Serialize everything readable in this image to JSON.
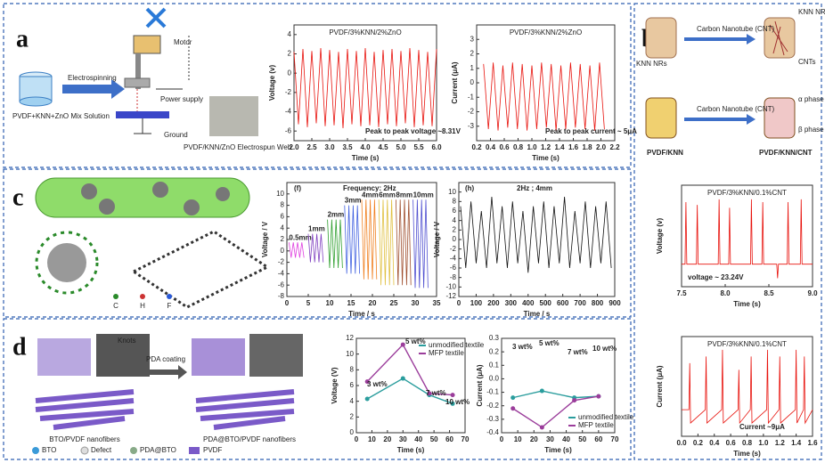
{
  "figure": {
    "panel_a": {
      "label": "a",
      "motor": "Motor",
      "electrospinning": "Electrospinning",
      "solution": "PVDF+KNN+ZnO Mix Solution",
      "power_supply": "Power supply",
      "ground": "Ground",
      "web": "PVDF/KNN/ZnO Electrospun Web"
    },
    "panel_b": {
      "label": "b",
      "cnt_arrow_1": "Carbon Nanotube (CNT)",
      "cnt_arrow_2": "Carbon Nanotube (CNT)",
      "knn_nrs_left": "KNN NRs",
      "knn_nrs_right": "KNN NRs",
      "cnts": "CNTs",
      "alpha": "α phase",
      "beta": "β phase",
      "pvdf_knn": "PVDF/KNN",
      "pvdf_knn_cnt": "PVDF/KNN/CNT"
    },
    "panel_c": {
      "label": "c",
      "legend": [
        "C",
        "H",
        "F"
      ]
    },
    "panel_d": {
      "label": "d",
      "knots": "Knots",
      "left": "BTO/PVDF nanofibers",
      "coating": "PDA coating",
      "right": "PDA@BTO/PVDF nanofibers",
      "legend": [
        "BTO",
        "Defect",
        "PDA@BTO",
        "PVDF"
      ]
    }
  },
  "chart_data": [
    {
      "type": "line",
      "title": "PVDF/3%KNN/2%ZnO",
      "x_label": "Time (s)",
      "y_label": "Voltage (v)",
      "annotations": [
        "Peak to peak voltage ~8.31V"
      ],
      "xlim": [
        2.0,
        6.0
      ],
      "xticks": [
        {
          "value": 2,
          "label": "2.0"
        },
        2.5,
        {
          "value": 3,
          "label": "3.0"
        },
        3.5,
        {
          "value": 4,
          "label": "4.0"
        },
        4.5,
        {
          "value": 5,
          "label": "5.0"
        },
        5.5,
        {
          "value": 6,
          "label": "6.0"
        }
      ],
      "ylim": [
        -7,
        5
      ],
      "yticks": [
        -6,
        -4,
        -2,
        0,
        2,
        4
      ],
      "series": [
        {
          "color": "#e8120c",
          "x": [
            2.0,
            2.125,
            2.25,
            2.375,
            2.5,
            2.625,
            2.75,
            2.875,
            3.0,
            3.125,
            3.25,
            3.375,
            3.5,
            3.625,
            3.75,
            3.875,
            4.0,
            4.125,
            4.25,
            4.375,
            4.5,
            4.625,
            4.75,
            4.875,
            5.0,
            5.125,
            5.25,
            5.375,
            5.5,
            5.625,
            5.75,
            5.875,
            6.0
          ],
          "values": [
            2.2,
            -5.3,
            2.5,
            -5.6,
            2.3,
            -5.2,
            2.6,
            -5.5,
            2.4,
            -5.4,
            2.2,
            -5.7,
            2.5,
            -5.3,
            2.3,
            -5.5,
            2.6,
            -5.4,
            2.2,
            -5.6,
            2.4,
            -5.3,
            2.5,
            -5.5,
            2.3,
            -5.2,
            2.6,
            -5.6,
            2.4,
            -5.4,
            2.2,
            -5.5,
            2.5
          ]
        }
      ]
    },
    {
      "type": "line",
      "title": "PVDF/3%KNN/2%ZnO",
      "x_label": "Time (s)",
      "y_label": "Current (μA)",
      "annotations": [
        "Peak to peak current ~ 5μA"
      ],
      "xlim": [
        0.2,
        2.2
      ],
      "xticks": [
        0.2,
        0.4,
        0.6,
        0.8,
        {
          "value": 1,
          "label": "1.0"
        },
        1.2,
        1.4,
        1.6,
        1.8,
        {
          "value": 2,
          "label": "2.0"
        },
        2.2
      ],
      "ylim": [
        -4,
        4
      ],
      "yticks": [
        -3,
        -2,
        -1,
        0,
        1,
        2,
        3
      ],
      "series": [
        {
          "color": "#e8120c",
          "x": [
            0.3,
            0.37,
            0.44,
            0.51,
            0.58,
            0.65,
            0.72,
            0.79,
            0.86,
            0.93,
            1.0,
            1.07,
            1.14,
            1.21,
            1.28,
            1.35,
            1.42,
            1.49,
            1.56,
            1.63,
            1.7,
            1.77,
            1.84,
            1.91,
            1.98,
            2.05
          ],
          "values": [
            1.3,
            -3.2,
            1.4,
            -3.3,
            1.2,
            -3.1,
            1.4,
            -3.2,
            1.3,
            -3.3,
            1.2,
            -3.2,
            1.4,
            -3.1,
            1.3,
            -3.3,
            1.2,
            -3.2,
            1.4,
            -3.1,
            1.3,
            -3.2,
            1.2,
            -3.3,
            1.4,
            -3.2
          ]
        }
      ]
    },
    {
      "type": "line",
      "x_label": "Time / s",
      "y_label": "Voltage / V",
      "legend": "inline",
      "annotations": [
        "(f)",
        "Frequency: 2Hz"
      ],
      "xlim": [
        0,
        35
      ],
      "xticks": [
        0,
        5,
        10,
        15,
        20,
        25,
        30,
        35
      ],
      "ylim": [
        -8,
        12
      ],
      "yticks": [
        -8,
        -6,
        -4,
        -2,
        0,
        2,
        4,
        6,
        8,
        10
      ],
      "series": [
        {
          "name": "0.5mm",
          "color": "#e040e0",
          "x": [
            0.5,
            1,
            1.5,
            2,
            2.5,
            3,
            3.5,
            4
          ],
          "values": [
            1.5,
            -1.2,
            1.5,
            -1.2,
            1.5,
            -1.2,
            1.5,
            -1.2
          ]
        },
        {
          "name": "1mm",
          "color": "#8040c0",
          "x": [
            5,
            5.5,
            6,
            6.5,
            7,
            7.5,
            8,
            8.5
          ],
          "values": [
            3,
            -2,
            3,
            -2,
            3,
            -2,
            3,
            -2
          ]
        },
        {
          "name": "2mm",
          "color": "#30a030",
          "x": [
            9.5,
            10,
            10.5,
            11,
            11.5,
            12,
            12.5,
            13
          ],
          "values": [
            5.5,
            -3,
            5.5,
            -3,
            5.5,
            -3,
            5.5,
            -3
          ]
        },
        {
          "name": "3mm",
          "color": "#4060e0",
          "x": [
            13.5,
            14,
            14.5,
            15,
            15.5,
            16,
            16.5,
            17
          ],
          "values": [
            8,
            -4,
            8,
            -4,
            8,
            -4,
            8,
            -4
          ]
        },
        {
          "name": "4mm",
          "color": "#f08020",
          "x": [
            17.5,
            18,
            18.5,
            19,
            19.5,
            20,
            20.5,
            21
          ],
          "values": [
            9,
            -5,
            9,
            -5,
            9,
            -5,
            9,
            -5
          ]
        },
        {
          "name": "6mm",
          "color": "#e0c040",
          "x": [
            21.5,
            22,
            22.5,
            23,
            23.5,
            24,
            24.5,
            25
          ],
          "values": [
            9,
            -6,
            9,
            -6,
            9,
            -6,
            9,
            -6
          ]
        },
        {
          "name": "8mm",
          "color": "#a05030",
          "x": [
            25.5,
            26,
            26.5,
            27,
            27.5,
            28,
            28.5,
            29
          ],
          "values": [
            9,
            -6,
            9,
            -6,
            9,
            -6,
            9,
            -6
          ]
        },
        {
          "name": "10mm",
          "color": "#5050d0",
          "x": [
            29.5,
            30,
            30.5,
            31,
            31.5,
            32,
            32.5,
            33
          ],
          "values": [
            9,
            -6.5,
            9,
            -6.5,
            9,
            -6.5,
            9,
            -6.5
          ]
        }
      ]
    },
    {
      "type": "line",
      "x_label": "Time / s",
      "y_label": "Voltage / V",
      "annotations": [
        "(h)",
        "2Hz ; 4mm"
      ],
      "xlim": [
        0,
        900
      ],
      "xticks": [
        0,
        100,
        200,
        300,
        400,
        500,
        600,
        700,
        800,
        900
      ],
      "ylim": [
        -12,
        12
      ],
      "yticks": [
        -12,
        -10,
        -8,
        -6,
        -4,
        -2,
        0,
        2,
        4,
        6,
        8,
        10
      ],
      "series": [
        {
          "color": "#111111",
          "x": [
            10,
            40,
            70,
            100,
            130,
            160,
            190,
            220,
            250,
            280,
            310,
            340,
            370,
            400,
            430,
            460,
            490,
            520,
            550,
            580,
            610,
            640,
            670,
            700,
            730,
            760,
            790,
            820,
            850,
            880
          ],
          "values": [
            7,
            -6,
            8,
            -5,
            6,
            -6,
            9,
            -5,
            7,
            -6,
            8,
            -5,
            6,
            -7,
            7,
            -5,
            8,
            -6,
            7,
            -5,
            9,
            -6,
            6,
            -5,
            8,
            -6,
            7,
            -5,
            8,
            -6
          ]
        }
      ]
    },
    {
      "type": "line",
      "title": "PVDF/3%KNN/0.1%CNT",
      "x_label": "Time (s)",
      "y_label": "Voltage (v)",
      "annotations": [
        "voltage ~ 23.24V"
      ],
      "xlim": [
        7.5,
        9.0
      ],
      "xticks": [
        7.5,
        {
          "value": 8,
          "label": "8.0"
        },
        8.5,
        {
          "value": 9,
          "label": "9.0"
        }
      ],
      "ylim": [
        -8,
        28
      ],
      "series": [
        {
          "color": "#e8120c",
          "x": [
            7.5,
            7.54,
            7.55,
            7.56,
            7.67,
            7.68,
            7.69,
            7.92,
            7.93,
            7.94,
            8.04,
            8.05,
            8.06,
            8.29,
            8.3,
            8.31,
            8.42,
            8.43,
            8.44,
            8.59,
            8.6,
            8.61,
            8.71,
            8.72,
            8.73,
            8.86,
            8.87,
            8.88,
            9.0
          ],
          "values": [
            0,
            0,
            22,
            0,
            0,
            21,
            0,
            0,
            23,
            0,
            0,
            20,
            0,
            0,
            23,
            0,
            0,
            22,
            0,
            0,
            -5,
            0,
            0,
            22,
            0,
            0,
            23,
            0,
            0
          ]
        }
      ]
    },
    {
      "type": "line",
      "title": "PVDF/3%KNN/0.1%CNT",
      "x_label": "Time (s)",
      "y_label": "Current (μA)",
      "annotations": [
        "Current ~9μA"
      ],
      "xlim": [
        0.0,
        1.6
      ],
      "xticks": [
        {
          "value": 0,
          "label": "0.0"
        },
        0.2,
        0.4,
        0.6,
        0.8,
        {
          "value": 1,
          "label": "1.0"
        },
        1.2,
        1.4,
        1.6
      ],
      "ylim": [
        -4,
        11
      ],
      "series": [
        {
          "color": "#e8120c",
          "x": [
            0,
            0.09,
            0.1,
            0.11,
            0.29,
            0.3,
            0.31,
            0.49,
            0.5,
            0.51,
            0.69,
            0.7,
            0.71,
            0.84,
            0.85,
            0.86,
            1.04,
            1.05,
            1.06,
            1.19,
            1.2,
            1.21,
            1.39,
            1.4,
            1.41,
            1.49,
            1.5,
            1.51,
            1.6
          ],
          "values": [
            0,
            0,
            7,
            -2,
            0,
            8,
            -2,
            0,
            9,
            -2,
            0,
            6,
            -2,
            0,
            8,
            -2,
            0,
            9,
            -2,
            0,
            8,
            -2,
            0,
            9,
            -2,
            0,
            8,
            -2,
            0
          ]
        }
      ]
    },
    {
      "type": "line",
      "x_label": "Time (s)",
      "y_label": "Voltage (V)",
      "legend": "upper right",
      "markers": true,
      "annotations": [
        "3 wt%",
        "5 wt%",
        "7 wt%",
        "10 wt%"
      ],
      "xlim": [
        0,
        70
      ],
      "xticks": [
        0,
        10,
        20,
        30,
        40,
        50,
        60,
        70
      ],
      "ylim": [
        0,
        12
      ],
      "yticks": [
        0,
        2,
        4,
        6,
        8,
        10,
        12
      ],
      "series": [
        {
          "name": "unmodified textile",
          "color": "#2a9d9d",
          "x": [
            7,
            30,
            47,
            62
          ],
          "values": [
            4.3,
            6.9,
            4.8,
            3.7
          ]
        },
        {
          "name": "MFP textile",
          "color": "#9b3d9b",
          "x": [
            7,
            30,
            47,
            62
          ],
          "values": [
            6.5,
            11.2,
            5.0,
            4.8
          ]
        }
      ]
    },
    {
      "type": "line",
      "x_label": "Time (s)",
      "y_label": "Current (μA)",
      "legend": "lower right",
      "markers": true,
      "annotations": [
        "3 wt%",
        "5 wt%",
        "7 wt%",
        "10 wt%"
      ],
      "xlim": [
        0,
        70
      ],
      "xticks": [
        0,
        10,
        20,
        30,
        40,
        50,
        60,
        70
      ],
      "ylim": [
        -0.4,
        0.3
      ],
      "yticks": [
        0.3,
        0.2,
        0.1,
        {
          "value": 0,
          "label": "0.0"
        },
        -0.1,
        -0.2,
        -0.3,
        -0.4
      ],
      "series": [
        {
          "name": "unmodified textile",
          "color": "#2a9d9d",
          "x": [
            7,
            25,
            45,
            60
          ],
          "values": [
            -0.14,
            -0.09,
            -0.14,
            -0.13
          ]
        },
        {
          "name": "MFP textile",
          "color": "#9b3d9b",
          "x": [
            7,
            25,
            45,
            60
          ],
          "values": [
            -0.22,
            -0.36,
            -0.16,
            -0.13
          ]
        }
      ]
    }
  ]
}
